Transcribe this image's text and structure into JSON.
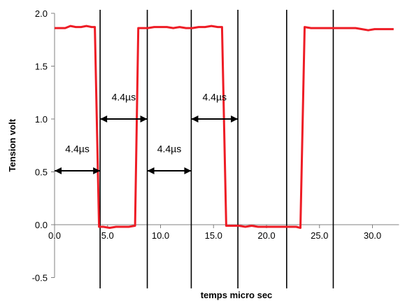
{
  "chart_data": {
    "type": "line",
    "title": "",
    "xlabel": "temps micro sec",
    "ylabel": "Tension volt",
    "xlim": [
      0,
      32.5
    ],
    "ylim": [
      -0.5,
      2.0
    ],
    "x_ticks": [
      "0.0",
      "5.0",
      "10.0",
      "15.0",
      "20.0",
      "25.0",
      "30.0"
    ],
    "x_tick_values": [
      0,
      5,
      10,
      15,
      20,
      25,
      30
    ],
    "y_ticks": [
      "2.0",
      "1.5",
      "1.0",
      "0.5",
      "0.0",
      "-0.5"
    ],
    "y_tick_values": [
      2.0,
      1.5,
      1.0,
      0.5,
      0.0,
      -0.5
    ],
    "grid": false,
    "legend": "none",
    "series_color": "#ee1c25",
    "series": [
      {
        "x": [
          0,
          0.5,
          1.0,
          1.5,
          2.0,
          2.5,
          3.0,
          3.5,
          3.8,
          4.2,
          4.6,
          5.2,
          5.8,
          6.4,
          7.0,
          7.6,
          7.9,
          8.3,
          8.8,
          9.4,
          10.0,
          10.6,
          11.2,
          11.8,
          12.4,
          13.0,
          13.6,
          14.2,
          14.8,
          15.4,
          15.8,
          16.2,
          16.8,
          17.4,
          18.0,
          18.6,
          19.2,
          19.8,
          20.4,
          21.0,
          21.6,
          22.2,
          22.8,
          23.2,
          23.6,
          24.2,
          24.8,
          25.4,
          26.0,
          26.6,
          27.2,
          27.8,
          28.4,
          29.0,
          29.6,
          30.2,
          30.8,
          31.4,
          32.0
        ],
        "y": [
          1.86,
          1.86,
          1.86,
          1.88,
          1.87,
          1.87,
          1.88,
          1.87,
          1.87,
          -0.02,
          -0.02,
          -0.03,
          -0.02,
          -0.02,
          -0.02,
          -0.01,
          1.86,
          1.86,
          1.86,
          1.87,
          1.87,
          1.87,
          1.86,
          1.87,
          1.86,
          1.86,
          1.87,
          1.87,
          1.88,
          1.87,
          1.87,
          -0.01,
          -0.01,
          -0.01,
          -0.02,
          -0.01,
          -0.02,
          -0.02,
          -0.02,
          -0.02,
          -0.02,
          -0.02,
          -0.02,
          -0.03,
          1.87,
          1.86,
          1.86,
          1.86,
          1.86,
          1.86,
          1.86,
          1.86,
          1.86,
          1.85,
          1.84,
          1.85,
          1.85,
          1.85,
          1.85
        ]
      }
    ],
    "vertical_lines_x": [
      4.3,
      8.75,
      12.9,
      17.3,
      21.9,
      26.3
    ],
    "annotations": [
      {
        "text": "4.4µs",
        "x_from": 0,
        "x_to": 4.3,
        "y": 0.51,
        "label_y": 0.72
      },
      {
        "text": "4.4µs",
        "x_from": 4.3,
        "x_to": 8.75,
        "y": 1.0,
        "label_y": 1.21
      },
      {
        "text": "4.4µs",
        "x_from": 8.75,
        "x_to": 12.9,
        "y": 0.51,
        "label_y": 0.72
      },
      {
        "text": "4.4µs",
        "x_from": 12.9,
        "x_to": 17.3,
        "y": 1.0,
        "label_y": 1.21
      }
    ]
  }
}
